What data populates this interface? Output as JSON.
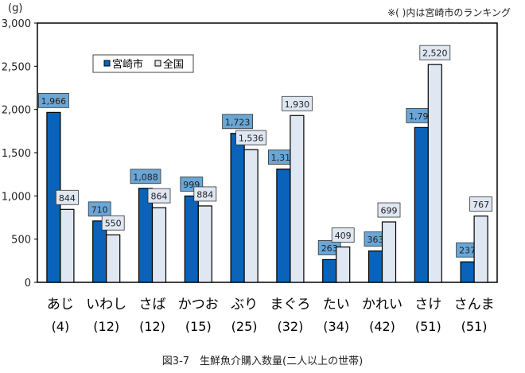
{
  "chart_data": {
    "type": "bar",
    "title": "図3-7　生鮮魚介購入数量(二人以上の世帯)",
    "note": "※( )内は宮崎市のランキング",
    "ylabel": "(g)",
    "xlabel": "",
    "ylim": [
      0,
      3000
    ],
    "yticks": [
      0,
      500,
      1000,
      1500,
      2000,
      2500,
      3000
    ],
    "ytick_labels": [
      "0",
      "500",
      "1,000",
      "1,500",
      "2,000",
      "2,500",
      "3,000"
    ],
    "categories": [
      "あじ",
      "いわし",
      "さば",
      "かつお",
      "ぶり",
      "まぐろ",
      "たい",
      "かれい",
      "さけ",
      "さんま"
    ],
    "ranks": [
      "(4)",
      "(12)",
      "(12)",
      "(15)",
      "(25)",
      "(32)",
      "(34)",
      "(42)",
      "(51)",
      "(51)"
    ],
    "legend_position": "top-left",
    "grid": false,
    "series": [
      {
        "name": "宮崎市",
        "color": "#0a63b8",
        "label_fill": "#6aa6d6",
        "values": [
          1966,
          710,
          1088,
          999,
          1723,
          1311,
          263,
          363,
          1791,
          237
        ],
        "labels": [
          "1,966",
          "710",
          "1,088",
          "999",
          "1,723",
          "1,311",
          "263",
          "363",
          "1,791",
          "237"
        ]
      },
      {
        "name": "全国",
        "color": "#dfe7f3",
        "label_fill": "#dfe7f3",
        "values": [
          844,
          550,
          864,
          884,
          1536,
          1930,
          409,
          699,
          2520,
          767
        ],
        "labels": [
          "844",
          "550",
          "864",
          "884",
          "1,536",
          "1,930",
          "409",
          "699",
          "2,520",
          "767"
        ]
      }
    ]
  }
}
